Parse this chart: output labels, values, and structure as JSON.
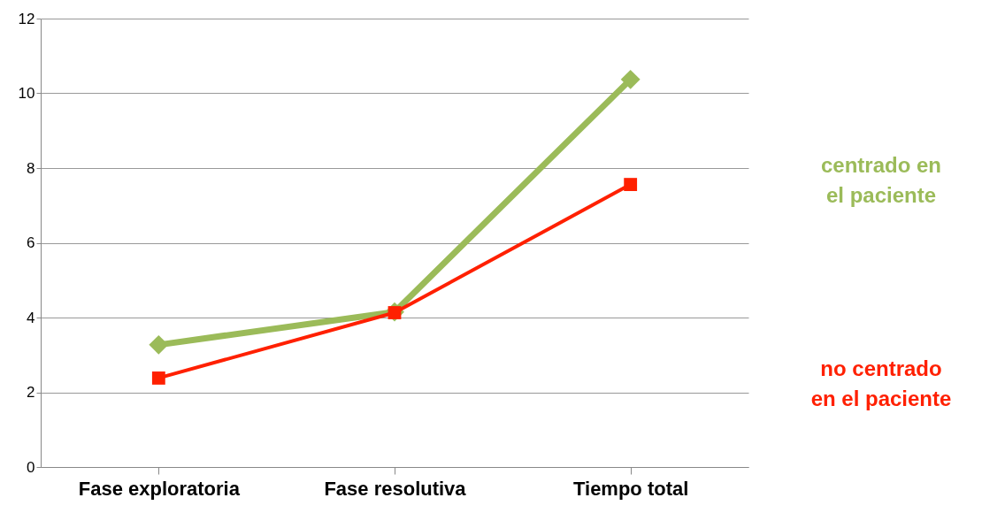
{
  "chart_data": {
    "type": "line",
    "categories": [
      "Fase exploratoria",
      "Fase resolutiva",
      "Tiempo total"
    ],
    "series": [
      {
        "name": "centrado en el paciente",
        "color": "#9bbb59",
        "values": [
          3.27,
          4.15,
          10.37
        ],
        "marker": "diamond"
      },
      {
        "name": "no centrado en el paciente",
        "color": "#ff2000",
        "values": [
          2.38,
          4.13,
          7.56
        ],
        "marker": "square"
      }
    ],
    "ylim": [
      0,
      12
    ],
    "yticks": [
      0,
      2,
      4,
      6,
      8,
      10,
      12
    ],
    "grid": "y",
    "legend": "right",
    "line_style": "solid"
  }
}
